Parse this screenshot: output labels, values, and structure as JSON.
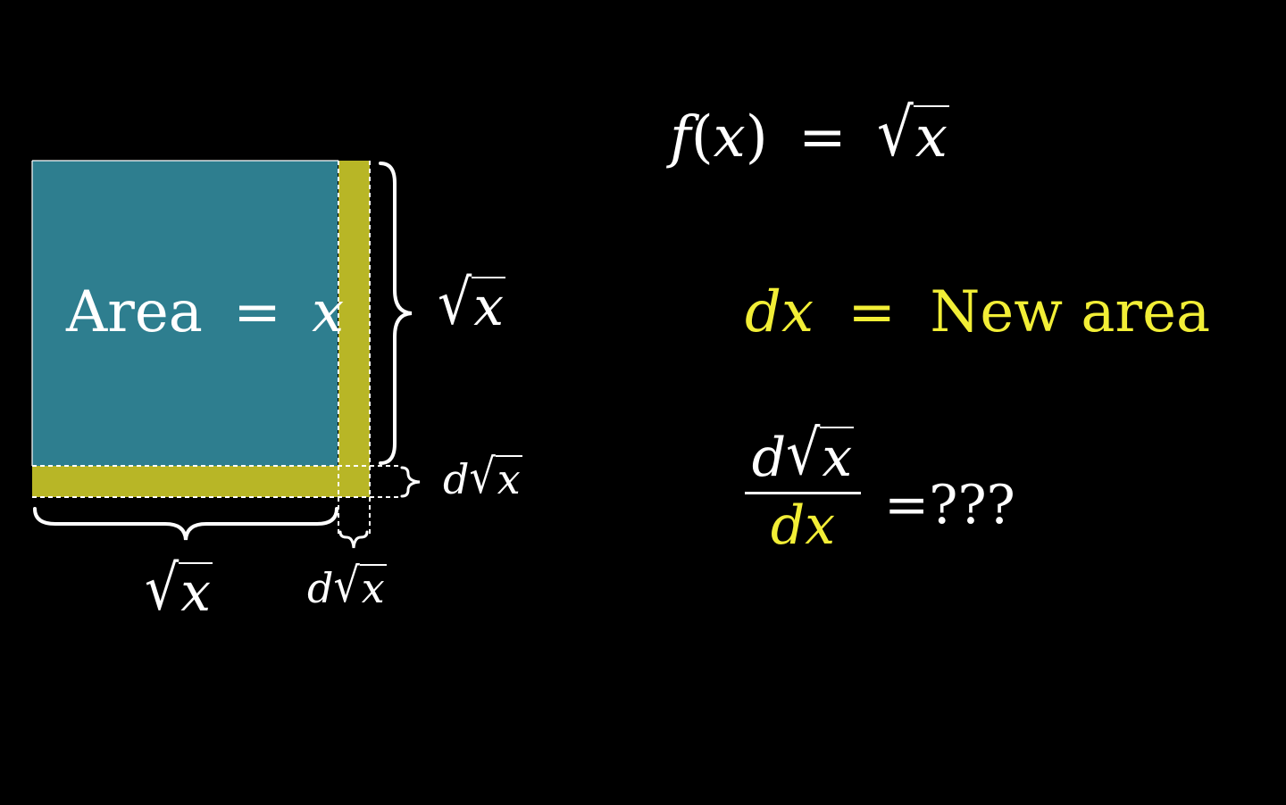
{
  "colors": {
    "background": "#000000",
    "area_fill": "#2e7e8f",
    "strip_fill": "#b8b626",
    "white": "#ffffff",
    "yellow": "#f2ee36"
  },
  "square": {
    "area_word": "Area",
    "equals": "=",
    "variable": "x"
  },
  "right_side_label": {
    "radical": "√",
    "radicand": "x"
  },
  "bottom_side_label": {
    "radical": "√",
    "radicand": "x"
  },
  "right_strip_label": {
    "d": "d",
    "radical": "√",
    "radicand": "x"
  },
  "bottom_strip_label": {
    "d": "d",
    "radical": "√",
    "radicand": "x"
  },
  "function_def": {
    "f": "f",
    "open_paren": "(",
    "x": "x",
    "close_paren": ")",
    "equals": "=",
    "radical": "√",
    "radicand": "x"
  },
  "new_area_eq": {
    "dx": "dx",
    "equals": "=",
    "text": "New area"
  },
  "derivative_eq": {
    "num_d": "d",
    "num_radical": "√",
    "num_radicand": "x",
    "den": "dx",
    "rhs": "=???"
  }
}
